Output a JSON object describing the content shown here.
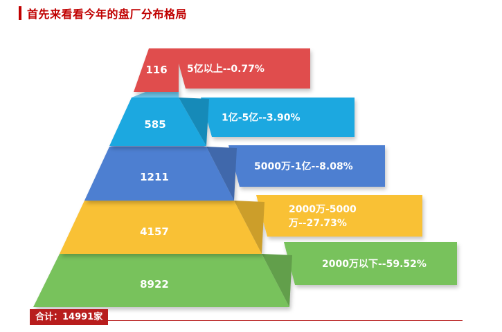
{
  "header": {
    "title": "首先来看看今年的盘厂分布格局"
  },
  "chart_data": {
    "type": "pyramid",
    "title": "首先来看看今年的盘厂分布格局",
    "levels": [
      {
        "count": 116,
        "label_lines": [
          "5亿以上--0.77%"
        ],
        "color": "#e04e4e"
      },
      {
        "count": 585,
        "label_lines": [
          "1亿-5亿--3.90%"
        ],
        "color": "#1fa8e0"
      },
      {
        "count": 1211,
        "label_lines": [
          "5000万-1亿--8.08%"
        ],
        "color": "#4d7fd1"
      },
      {
        "count": 4157,
        "label_lines": [
          "2000万-5000",
          "万--27.73%"
        ],
        "color": "#f9c136"
      },
      {
        "count": 8922,
        "label_lines": [
          "2000万以下--59.52%"
        ],
        "color": "#78c25b"
      }
    ],
    "total_label": "合计：14991家"
  }
}
